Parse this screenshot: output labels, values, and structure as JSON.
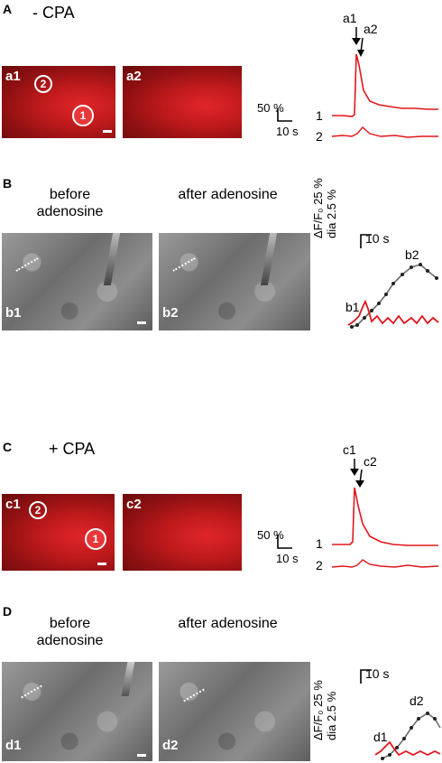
{
  "panelA": {
    "letter": "A",
    "condition": "- CPA",
    "img1": "a1",
    "img2": "a2",
    "cell_marker_1": "1",
    "cell_marker_2": "2",
    "arrow1": "a1",
    "arrow2": "a2",
    "scale_y": "50 %",
    "scale_x": "10 s",
    "trace1": "1",
    "trace2": "2"
  },
  "panelB": {
    "letter": "B",
    "before": "before adenosine",
    "after": "after adenosine",
    "img1": "b1",
    "img2": "b2",
    "scale_x": "10 s",
    "ylabel1": "ΔF/F₀ 25 %",
    "ylabel2": "dia 2.5 %",
    "pt1": "b1",
    "pt2": "b2"
  },
  "panelC": {
    "letter": "C",
    "condition": "+ CPA",
    "img1": "c1",
    "img2": "c2",
    "cell_marker_1": "1",
    "cell_marker_2": "2",
    "arrow1": "c1",
    "arrow2": "c2",
    "scale_y": "50 %",
    "scale_x": "10 s",
    "trace1": "1",
    "trace2": "2"
  },
  "panelD": {
    "letter": "D",
    "before": "before adenosine",
    "after": "after adenosine",
    "img1": "d1",
    "img2": "d2",
    "scale_x": "10 s",
    "ylabel1": "ΔF/F₀ 25 %",
    "ylabel2": "dia 2.5 %",
    "pt1": "d1",
    "pt2": "d2"
  },
  "colors": {
    "trace_red": "#e0161b",
    "trace_gray": "#6d6d6d"
  }
}
